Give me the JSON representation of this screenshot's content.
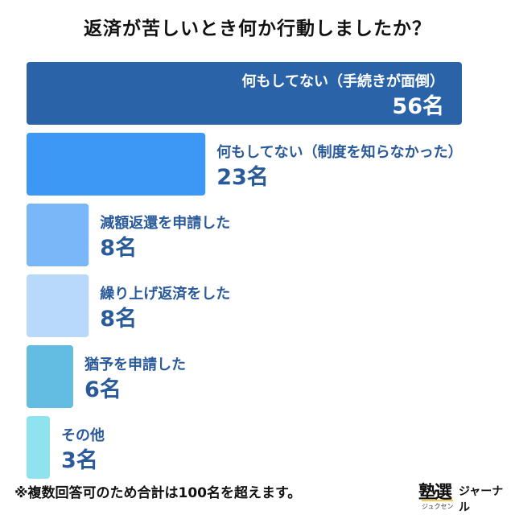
{
  "title": "返済が苦しいとき何か行動しましたか？",
  "footnote": "※複数回答可のため合計は100名を超えます。",
  "logo": {
    "kanji": "塾選",
    "word": "ジャーナル",
    "reading": "ジュクセン"
  },
  "colors": {
    "bar1": "#2b63a8",
    "bar2": "#3d97f4",
    "bar3": "#7ab7f8",
    "bar4": "#b9d9fb",
    "bar5": "#63bde3",
    "bar6": "#8ee3ee",
    "label_dark": "#2a5a9a",
    "label_light": "#ffffff"
  },
  "chart_data": {
    "type": "bar",
    "orientation": "horizontal",
    "title": "返済が苦しいとき何か行動しましたか？",
    "categories": [
      "何もしてない（手続きが面倒）",
      "何もしてない（制度を知らなかった）",
      "減額返還を申請した",
      "繰り上げ返済をした",
      "猶予を申請した",
      "その他"
    ],
    "values": [
      56,
      23,
      8,
      8,
      6,
      3
    ],
    "value_labels": [
      "56名",
      "23名",
      "8名",
      "8名",
      "6名",
      "3名"
    ],
    "unit": "名",
    "xlim": [
      0,
      56
    ]
  }
}
